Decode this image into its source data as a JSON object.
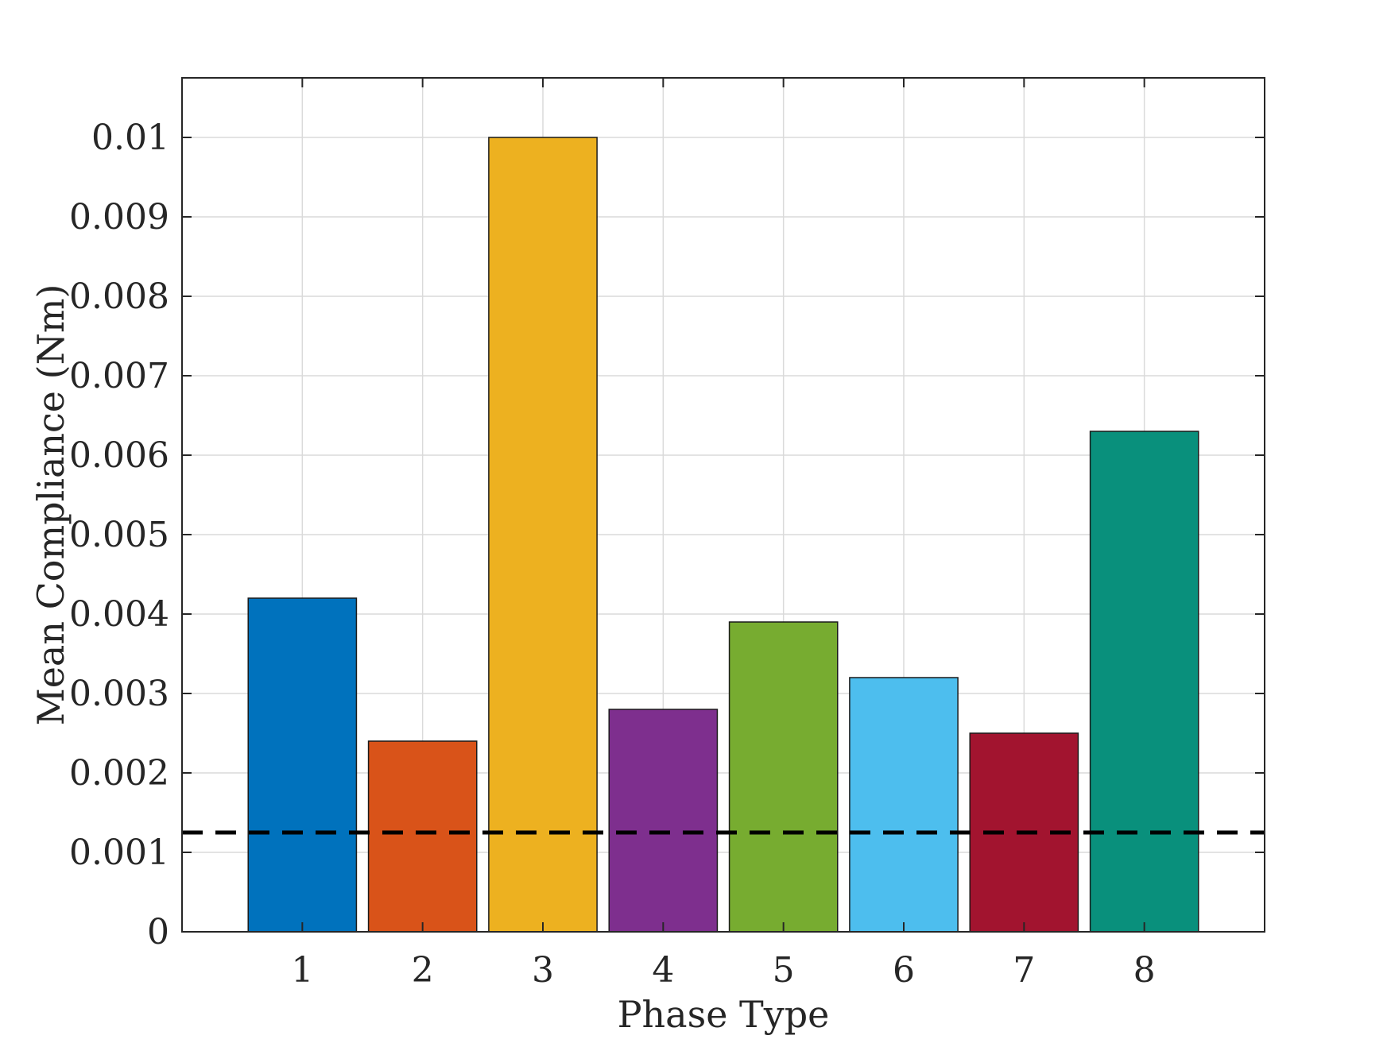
{
  "chart_data": {
    "type": "bar",
    "categories": [
      "1",
      "2",
      "3",
      "4",
      "5",
      "6",
      "7",
      "8"
    ],
    "values": [
      0.0042,
      0.0024,
      0.01,
      0.0028,
      0.0039,
      0.0032,
      0.0025,
      0.0063
    ],
    "colors": [
      "#0072BD",
      "#D95319",
      "#EDB120",
      "#7E2F8E",
      "#77AC30",
      "#4DBEEE",
      "#A2142F",
      "#09907C"
    ],
    "xlabel": "Phase Type",
    "ylabel": "Mean Compliance (Nm)",
    "xlim": [
      0,
      9
    ],
    "ylim": [
      0,
      0.01075
    ],
    "yticks": [
      0,
      0.001,
      0.002,
      0.003,
      0.004,
      0.005,
      0.006,
      0.007,
      0.008,
      0.009,
      0.01
    ],
    "ytick_labels": [
      "0",
      "0.001",
      "0.002",
      "0.003",
      "0.004",
      "0.005",
      "0.006",
      "0.007",
      "0.008",
      "0.009",
      "0.01"
    ],
    "xticks": [
      1,
      2,
      3,
      4,
      5,
      6,
      7,
      8
    ],
    "xtick_labels": [
      "1",
      "2",
      "3",
      "4",
      "5",
      "6",
      "7",
      "8"
    ],
    "reference_line": {
      "value": 0.00125,
      "style": "dashed",
      "color": "#000000"
    },
    "grid": true,
    "legend": "none"
  }
}
